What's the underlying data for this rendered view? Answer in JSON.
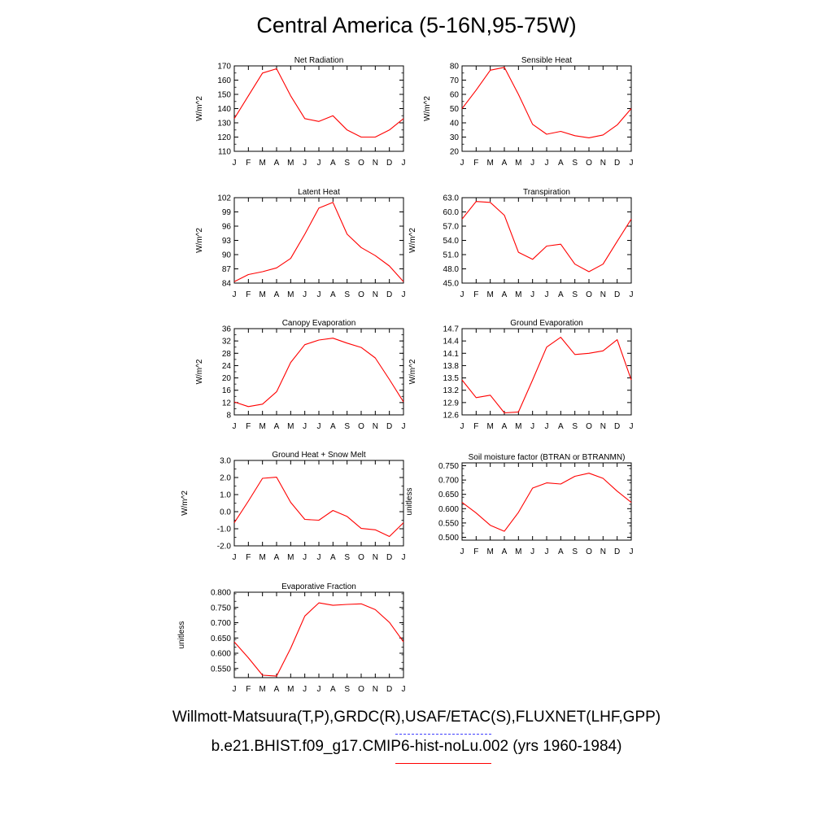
{
  "figure": {
    "title": "Central America (5-16N,95-75W)",
    "legend": [
      {
        "label": "Willmott-Matsuura(T,P),GRDC(R),USAF/ETAC(S),FLUXNET(LHF,GPP)",
        "color": "#4040ff",
        "style": "dashed"
      },
      {
        "label": "b.e21.BHIST.f09_g17.CMIP6-hist-noLu.002 (yrs 1960-1984)",
        "color": "#ff0000",
        "style": "solid"
      }
    ]
  },
  "chart_data": [
    {
      "type": "line",
      "title": "Net Radiation",
      "ylabel": "W/m^2",
      "categories": [
        "J",
        "F",
        "M",
        "A",
        "M",
        "J",
        "J",
        "A",
        "S",
        "O",
        "N",
        "D",
        "J"
      ],
      "ylim": [
        110,
        170
      ],
      "yticks": [
        "110",
        "120",
        "130",
        "140",
        "150",
        "160",
        "170"
      ],
      "series": [
        {
          "color": "#ff0000",
          "values": [
            133,
            149,
            165,
            168,
            149,
            133,
            131,
            135,
            125,
            120,
            120,
            125,
            133
          ]
        }
      ]
    },
    {
      "type": "line",
      "title": "Sensible Heat",
      "ylabel": "W/m^2",
      "categories": [
        "J",
        "F",
        "M",
        "A",
        "M",
        "J",
        "J",
        "A",
        "S",
        "O",
        "N",
        "D",
        "J"
      ],
      "ylim": [
        20,
        80
      ],
      "yticks": [
        "20",
        "30",
        "40",
        "50",
        "60",
        "70",
        "80"
      ],
      "series": [
        {
          "color": "#ff0000",
          "values": [
            50,
            63,
            77,
            79,
            60,
            39,
            32,
            34,
            31,
            29.5,
            31.5,
            38.5,
            50
          ]
        }
      ]
    },
    {
      "type": "line",
      "title": "Latent Heat",
      "ylabel": "W/m^2",
      "categories": [
        "J",
        "F",
        "M",
        "A",
        "M",
        "J",
        "J",
        "A",
        "S",
        "O",
        "N",
        "D",
        "J"
      ],
      "ylim": [
        84,
        102
      ],
      "yticks": [
        "84",
        "87",
        "90",
        "93",
        "96",
        "99",
        "102"
      ],
      "series": [
        {
          "color": "#ff0000",
          "values": [
            84.3,
            85.8,
            86.4,
            87.2,
            89.2,
            94.3,
            99.8,
            101,
            94.3,
            91.5,
            89.8,
            87.6,
            84.3
          ]
        }
      ]
    },
    {
      "type": "line",
      "title": "Transpiration",
      "ylabel": "W/m^2",
      "categories": [
        "J",
        "F",
        "M",
        "A",
        "M",
        "J",
        "J",
        "A",
        "S",
        "O",
        "N",
        "D",
        "J"
      ],
      "ylim": [
        45,
        63
      ],
      "yticks": [
        "45.0",
        "48.0",
        "51.0",
        "54.0",
        "57.0",
        "60.0",
        "63.0"
      ],
      "series": [
        {
          "color": "#ff0000",
          "values": [
            58.5,
            62.2,
            62,
            59.3,
            51.5,
            50,
            52.8,
            53.2,
            49,
            47.4,
            49,
            53.8,
            58.5
          ]
        }
      ]
    },
    {
      "type": "line",
      "title": "Canopy Evaporation",
      "ylabel": "W/m^2",
      "categories": [
        "J",
        "F",
        "M",
        "A",
        "M",
        "J",
        "J",
        "A",
        "S",
        "O",
        "N",
        "D",
        "J"
      ],
      "ylim": [
        8,
        36
      ],
      "yticks": [
        "8",
        "12",
        "16",
        "20",
        "24",
        "28",
        "32",
        "36"
      ],
      "series": [
        {
          "color": "#ff0000",
          "values": [
            12.2,
            10.7,
            11.5,
            15.5,
            25,
            30.8,
            32.3,
            32.9,
            31.3,
            29.9,
            26.5,
            19.5,
            12.2
          ]
        }
      ]
    },
    {
      "type": "line",
      "title": "Ground Evaporation",
      "ylabel": "W/m^2",
      "categories": [
        "J",
        "F",
        "M",
        "A",
        "M",
        "J",
        "J",
        "A",
        "S",
        "O",
        "N",
        "D",
        "J"
      ],
      "ylim": [
        12.6,
        14.7
      ],
      "yticks": [
        "12.6",
        "12.9",
        "13.2",
        "13.5",
        "13.8",
        "14.1",
        "14.4",
        "14.7"
      ],
      "series": [
        {
          "color": "#ff0000",
          "values": [
            13.45,
            13.02,
            13.08,
            12.65,
            12.67,
            13.45,
            14.25,
            14.49,
            14.07,
            14.1,
            14.16,
            14.43,
            13.45
          ]
        }
      ]
    },
    {
      "type": "line",
      "title": "Ground Heat + Snow Melt",
      "ylabel": "W/m^2",
      "categories": [
        "J",
        "F",
        "M",
        "A",
        "M",
        "J",
        "J",
        "A",
        "S",
        "O",
        "N",
        "D",
        "J"
      ],
      "ylim": [
        -2.0,
        3.0
      ],
      "yticks": [
        "-2.0",
        "-1.0",
        "0.0",
        "1.0",
        "2.0",
        "3.0"
      ],
      "series": [
        {
          "color": "#ff0000",
          "values": [
            -0.65,
            0.62,
            1.95,
            2.02,
            0.55,
            -0.45,
            -0.5,
            0.07,
            -0.28,
            -0.98,
            -1.06,
            -1.45,
            -0.65
          ]
        }
      ]
    },
    {
      "type": "line",
      "title": "Soil moisture factor (BTRAN or BTRANMN)",
      "ylabel": "unitless",
      "categories": [
        "J",
        "F",
        "M",
        "A",
        "M",
        "J",
        "J",
        "A",
        "S",
        "O",
        "N",
        "D",
        "J"
      ],
      "ylim": [
        0.49,
        0.76
      ],
      "yticks": [
        "0.500",
        "0.550",
        "0.600",
        "0.650",
        "0.700",
        "0.750"
      ],
      "series": [
        {
          "color": "#ff0000",
          "values": [
            0.622,
            0.585,
            0.542,
            0.521,
            0.587,
            0.672,
            0.69,
            0.686,
            0.713,
            0.724,
            0.706,
            0.661,
            0.622
          ]
        }
      ]
    },
    {
      "type": "line",
      "title": "Evaporative Fraction",
      "ylabel": "unitless",
      "categories": [
        "J",
        "F",
        "M",
        "A",
        "M",
        "J",
        "J",
        "A",
        "S",
        "O",
        "N",
        "D",
        "J"
      ],
      "ylim": [
        0.52,
        0.8
      ],
      "yticks": [
        "0.550",
        "0.600",
        "0.650",
        "0.700",
        "0.750",
        "0.800"
      ],
      "series": [
        {
          "color": "#ff0000",
          "values": [
            0.637,
            0.585,
            0.528,
            0.525,
            0.616,
            0.722,
            0.765,
            0.757,
            0.76,
            0.762,
            0.743,
            0.701,
            0.637
          ]
        }
      ]
    }
  ]
}
